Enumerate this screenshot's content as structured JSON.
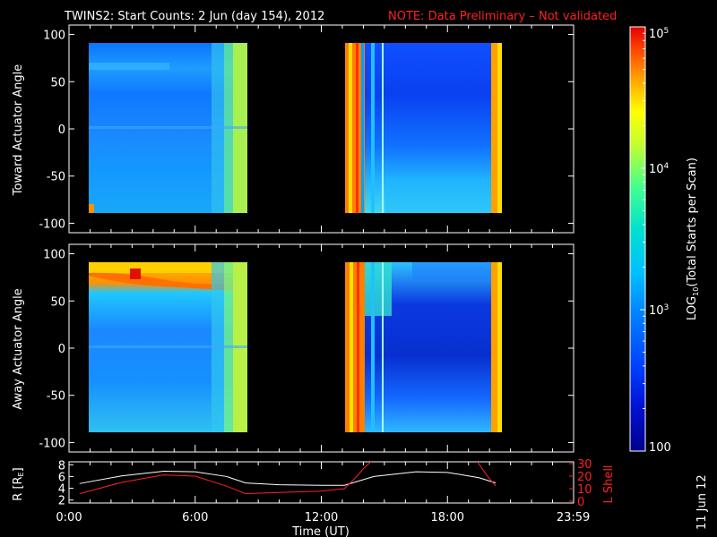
{
  "header": {
    "title": "TWINS2: Start Counts:  2 Jun (day 154), 2012",
    "note": "NOTE: Data Preliminary – Not validated"
  },
  "footer": {
    "date_stamp": "11 Jun 12"
  },
  "colors": {
    "background": "#000000",
    "axes": "#ffffff",
    "note": "#ff2020",
    "l_shell": "#ff2020",
    "r_re": "#ffffff"
  },
  "chart_data": [
    {
      "type": "heatmap",
      "title": "",
      "ylabel": "Toward Actuator Angle",
      "xlabel": "",
      "xlim": [
        0,
        24
      ],
      "ylim": [
        -110,
        110
      ],
      "y_ticks": [
        "100",
        "50",
        "0",
        "-50",
        "-100"
      ],
      "coverage_hours": [
        [
          0.0,
          8.4
        ],
        [
          13.1,
          20.3
        ]
      ],
      "angle_range": [
        -88,
        90
      ],
      "grid": false
    },
    {
      "type": "heatmap",
      "title": "",
      "ylabel": "Away Actuator Angle",
      "xlabel": "",
      "xlim": [
        0,
        24
      ],
      "ylim": [
        -110,
        110
      ],
      "y_ticks": [
        "100",
        "50",
        "0",
        "-50",
        "-100"
      ],
      "coverage_hours": [
        [
          0.0,
          8.4
        ],
        [
          13.1,
          20.3
        ]
      ],
      "angle_range": [
        -88,
        90
      ],
      "grid": false
    },
    {
      "type": "line",
      "xlabel": "Time (UT)",
      "x_ticks": [
        "0:00",
        "6:00",
        "12:00",
        "18:00",
        "23:59"
      ],
      "xlim": [
        0,
        24
      ],
      "left_axis": {
        "label_parts": [
          "R [R",
          "E",
          "]"
        ],
        "ylim": [
          1.5,
          8.5
        ],
        "ticks": [
          "8",
          "6",
          "4",
          "2"
        ]
      },
      "right_axis": {
        "label": "L Shell",
        "ylim": [
          0,
          30
        ],
        "ticks": [
          "30",
          "20",
          "10",
          "0"
        ]
      },
      "series": [
        {
          "axis": "left",
          "x": [
            0.5,
            2.5,
            4.5,
            6.0,
            7.5,
            8.4,
            10.0,
            12.0,
            13.1,
            14.5,
            16.5,
            18.0,
            19.5,
            20.3
          ],
          "values": [
            4.8,
            6.1,
            6.9,
            6.8,
            6.0,
            4.9,
            4.6,
            4.5,
            4.5,
            6.0,
            6.8,
            6.7,
            5.8,
            4.9
          ]
        },
        {
          "axis": "right",
          "x": [
            0.5,
            2.5,
            4.5,
            6.0,
            7.5,
            8.4,
            10.0,
            12.0,
            13.1,
            13.7,
            14.0,
            14.4
          ],
          "values": [
            6,
            15,
            21,
            20,
            12,
            6,
            7,
            8,
            10,
            20,
            26,
            32
          ]
        },
        {
          "axis": "right",
          "x": [
            19.4,
            19.9,
            20.3
          ],
          "values": [
            32,
            20,
            12
          ]
        }
      ]
    }
  ],
  "colorbar": {
    "label_parts": [
      "LOG",
      "10",
      "(Total Starts per Scan)"
    ],
    "range": [
      100,
      100000
    ],
    "tick_labels": [
      {
        "value": 100000,
        "base": "10",
        "exp": "5"
      },
      {
        "value": 10000,
        "base": "10",
        "exp": "4"
      },
      {
        "value": 1000,
        "base": "10",
        "exp": "3"
      },
      {
        "value": 100,
        "text": "100"
      }
    ],
    "colors": [
      "#00008c",
      "#0030ff",
      "#00a0ff",
      "#00e0e0",
      "#40ff90",
      "#c0ff30",
      "#ffff00",
      "#ffb000",
      "#ff5000",
      "#e00000"
    ]
  }
}
